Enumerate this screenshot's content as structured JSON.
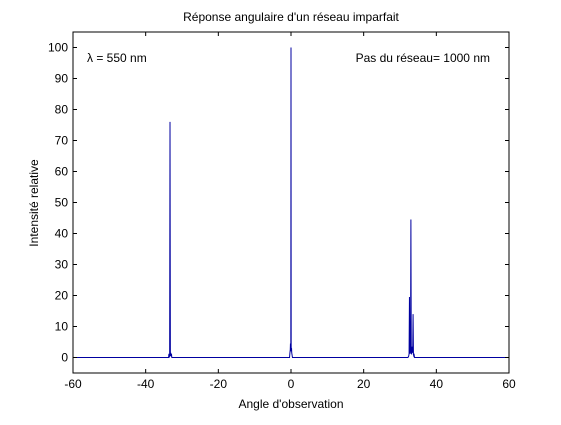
{
  "chart_data": {
    "type": "line",
    "title": "Réponse angulaire d'un réseau imparfait",
    "xlabel": "Angle d'observation",
    "ylabel": "Intensité relative",
    "xlim": [
      -60,
      60
    ],
    "ylim": [
      -5,
      105
    ],
    "xticks": [
      -60,
      -40,
      -20,
      0,
      20,
      40,
      60
    ],
    "yticks": [
      0,
      10,
      20,
      30,
      40,
      50,
      60,
      70,
      80,
      90,
      100
    ],
    "grid": false,
    "annotations": [
      {
        "text": "λ = 550 nm",
        "position": "top-left"
      },
      {
        "text": "Pas du réseau= 1000 nm",
        "position": "top-right"
      }
    ],
    "series": [
      {
        "color": "#0000a0",
        "x": [
          -60,
          -33.7,
          -33.6,
          -33.5,
          -33.4,
          -33.3,
          -33.2,
          -33.1,
          -33.0,
          -32.9,
          -32.8,
          -0.4,
          -0.3,
          -0.2,
          -0.15,
          -0.1,
          -0.05,
          0.0,
          0.05,
          0.1,
          0.15,
          0.2,
          0.3,
          0.4,
          32.2,
          32.4,
          32.5,
          32.6,
          32.7,
          32.8,
          32.9,
          33.0,
          33.1,
          33.2,
          33.3,
          33.4,
          33.5,
          33.6,
          33.7,
          33.8,
          33.9,
          34.0,
          34.2,
          60
        ],
        "values": [
          0,
          0,
          1.2,
          0,
          0.8,
          76,
          0.5,
          1.5,
          0.3,
          1.2,
          0,
          0,
          1.5,
          2.5,
          4.5,
          2,
          3,
          100,
          3.5,
          2,
          3,
          1.5,
          0.8,
          0,
          0,
          0.5,
          1.2,
          19.5,
          2.5,
          1.2,
          2,
          44.5,
          2,
          1,
          3.5,
          1.5,
          2.5,
          14,
          1,
          0.5,
          0.8,
          0,
          0,
          0
        ]
      }
    ]
  }
}
